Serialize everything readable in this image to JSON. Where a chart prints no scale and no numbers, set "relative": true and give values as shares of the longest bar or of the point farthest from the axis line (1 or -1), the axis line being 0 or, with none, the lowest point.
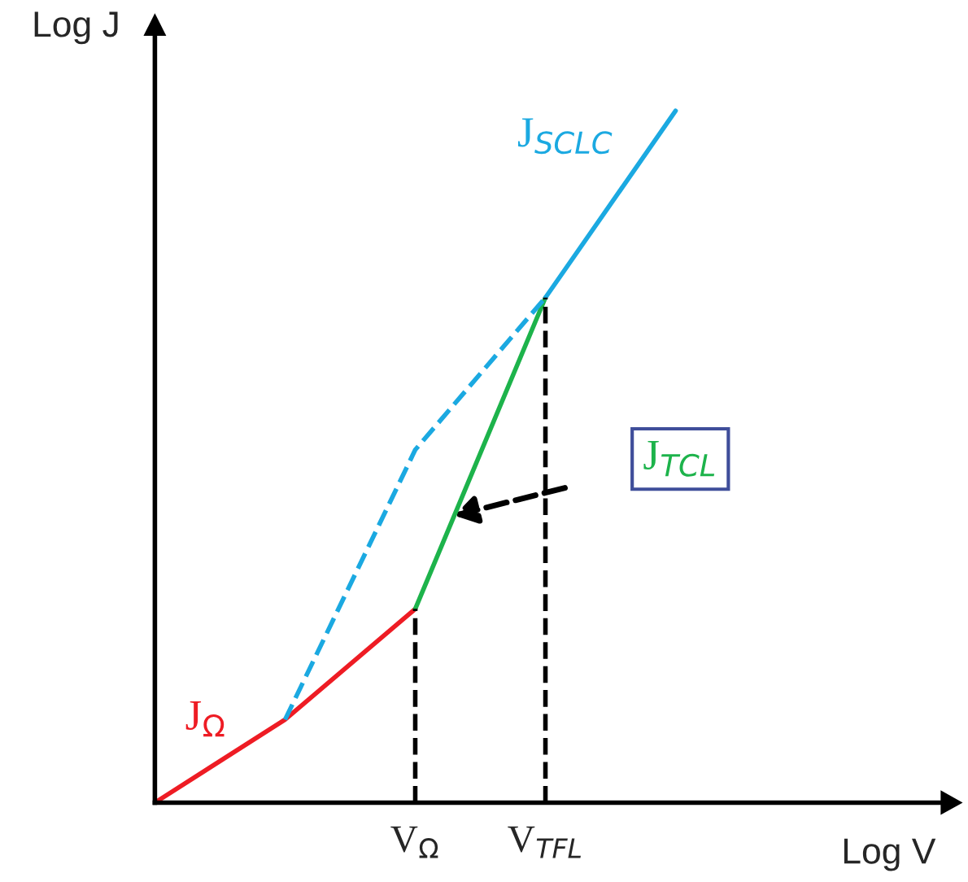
{
  "chart_data": {
    "type": "line",
    "relative": true,
    "xlabel": "Log V",
    "ylabel": "Log J",
    "categories": [
      null,
      null,
      "V$_{Ω}$",
      "V$_{TFL}$",
      null,
      null,
      null
    ],
    "series": [
      {
        "name": "J$_{Ω}$",
        "color": "#ee1c24",
        "values": [
          0,
          0.12,
          0.28,
          null,
          null,
          null,
          null
        ],
        "line_style": "solid"
      },
      {
        "name": "J$_{TCL}$",
        "color": "#1db34b",
        "values": [
          null,
          null,
          0.28,
          0.73,
          null,
          null,
          null
        ],
        "line_style": "solid"
      },
      {
        "name": "J$_{SCLC}$",
        "color": "#1ba9e1",
        "values": [
          null,
          null,
          null,
          0.73,
          1.0,
          null,
          null
        ],
        "line_style": "solid"
      },
      {
        "color": "#1ba9e1",
        "values": [
          null,
          0.12,
          0.51,
          0.73,
          null,
          null,
          null
        ],
        "line_style": "dashed"
      }
    ],
    "ref_lines": [
      {
        "axis": "x",
        "value": "V$_{Ω}$",
        "color": "#000000",
        "line_style": "dashed"
      },
      {
        "axis": "x",
        "value": "V$_{TFL}$",
        "color": "#000000",
        "line_style": "dashed"
      }
    ]
  }
}
